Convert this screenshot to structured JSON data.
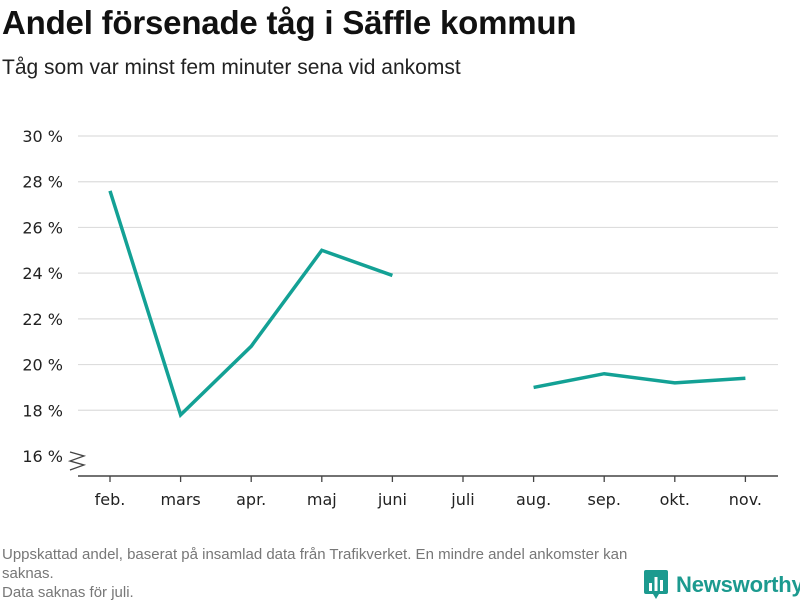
{
  "title": "Andel försenade tåg i Säffle kommun",
  "subtitle": "Tåg som var minst fem minuter sena vid ankomst",
  "footnote": {
    "line1": "Uppskattad andel, baserat på insamlad data från Trafikverket. En mindre andel ankomster kan saknas.",
    "line2": "Data saknas för juli."
  },
  "brand": {
    "name": "Newsworthy",
    "icon": "bar-chart-logo-icon",
    "color": "#1c9a8f"
  },
  "chart_data": {
    "type": "line",
    "categories": [
      "feb.",
      "mars",
      "apr.",
      "maj",
      "juni",
      "juli",
      "aug.",
      "sep.",
      "okt.",
      "nov."
    ],
    "series": [
      {
        "values": [
          27.6,
          17.8,
          20.8,
          25.0,
          23.9,
          null,
          19.0,
          19.6,
          19.2,
          19.4
        ]
      }
    ],
    "yticks": [
      16,
      18,
      20,
      22,
      24,
      26,
      28,
      30
    ],
    "ytick_labels": [
      "16 %",
      "18 %",
      "20 %",
      "22 %",
      "24 %",
      "26 %",
      "28 %",
      "30 %"
    ],
    "ylim": [
      16,
      30
    ],
    "axis_break": true,
    "grid": true,
    "line_color": "#13a195",
    "grid_color": "#dddddd"
  }
}
